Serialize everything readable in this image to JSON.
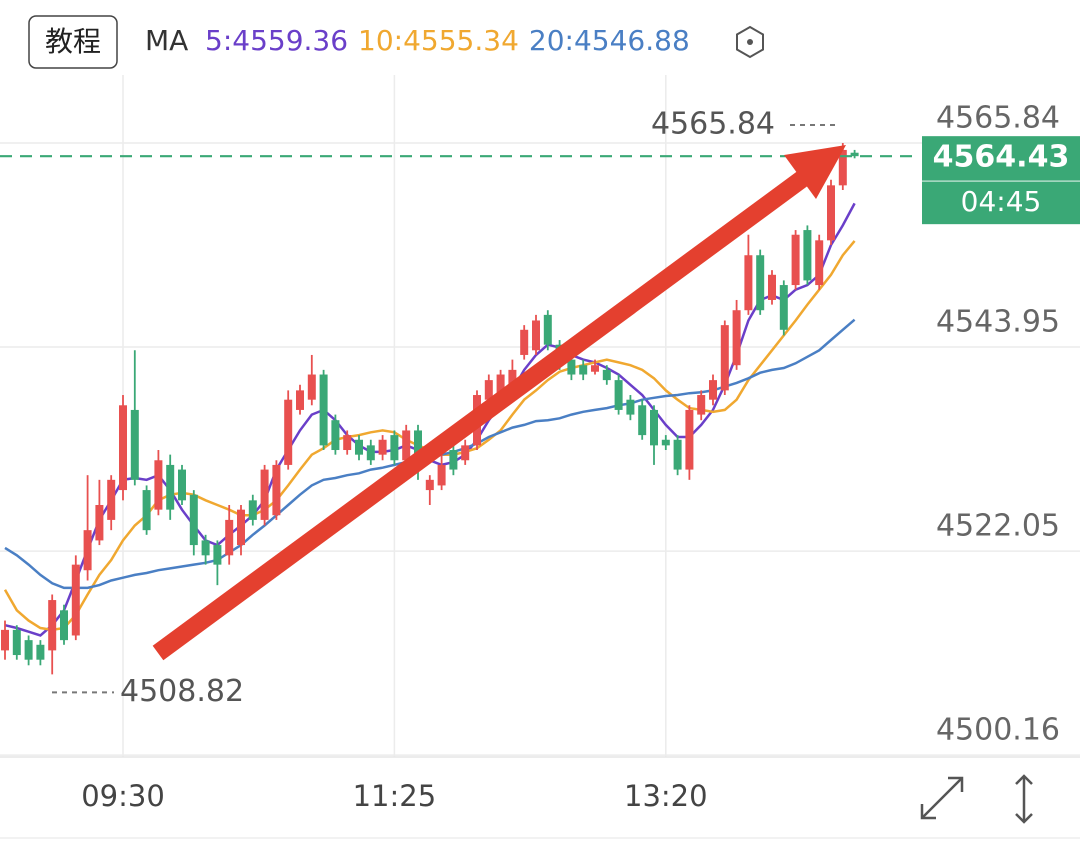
{
  "chart_data": {
    "type": "candlestick",
    "button": "教程",
    "legend_title": "MA",
    "up_color": "#e8504f",
    "down_color": "#3aa876",
    "ylim": [
      4499.96,
      4571.53
    ],
    "yticks": [
      4565.84,
      4543.95,
      4522.05,
      4500.16
    ],
    "grid": true,
    "categories": [
      null,
      null,
      null,
      null,
      null,
      null,
      null,
      null,
      null,
      null,
      "09:30",
      null,
      null,
      null,
      null,
      null,
      null,
      null,
      null,
      null,
      null,
      null,
      null,
      null,
      null,
      null,
      null,
      null,
      null,
      null,
      null,
      null,
      null,
      "11:25",
      null,
      null,
      null,
      null,
      null,
      null,
      null,
      null,
      null,
      null,
      null,
      null,
      null,
      null,
      null,
      null,
      null,
      null,
      null,
      null,
      null,
      null,
      "13:20",
      null,
      null,
      null,
      null,
      null,
      null,
      null,
      null,
      null,
      null,
      null,
      null,
      null,
      null,
      null,
      null
    ],
    "candles": [
      [
        4511.4,
        4514.6,
        4510.4,
        4513.6
      ],
      [
        4513.6,
        4514.1,
        4510.4,
        4510.9
      ],
      [
        4512.5,
        4513.0,
        4509.8,
        4510.4
      ],
      [
        4512.0,
        4512.5,
        4509.8,
        4510.4
      ],
      [
        4511.4,
        4517.4,
        4508.82,
        4516.8
      ],
      [
        4515.7,
        4516.3,
        4512.0,
        4512.5
      ],
      [
        4513.0,
        4521.6,
        4512.5,
        4520.6
      ],
      [
        4520.0,
        4530.2,
        4518.9,
        4524.3
      ],
      [
        4523.2,
        4529.7,
        4522.7,
        4527.0
      ],
      [
        4525.4,
        4530.2,
        4524.3,
        4529.7
      ],
      [
        4528.6,
        4538.8,
        4527.5,
        4537.7
      ],
      [
        4537.2,
        4543.6,
        4529.1,
        4529.7
      ],
      [
        4528.6,
        4529.1,
        4523.8,
        4524.3
      ],
      [
        4526.5,
        4532.9,
        4525.9,
        4531.8
      ],
      [
        4531.3,
        4532.4,
        4525.4,
        4526.5
      ],
      [
        4530.8,
        4531.3,
        4527.0,
        4527.5
      ],
      [
        4528.1,
        4528.6,
        4521.6,
        4522.7
      ],
      [
        4523.2,
        4523.8,
        4520.6,
        4521.6
      ],
      [
        4522.7,
        4523.2,
        4518.4,
        4520.6
      ],
      [
        4521.6,
        4527.0,
        4520.6,
        4525.4
      ],
      [
        4522.7,
        4527.0,
        4521.6,
        4526.5
      ],
      [
        4527.5,
        4528.1,
        4524.8,
        4525.4
      ],
      [
        4525.4,
        4531.3,
        4524.8,
        4530.8
      ],
      [
        4525.9,
        4531.8,
        4525.4,
        4531.3
      ],
      [
        4531.3,
        4539.3,
        4530.8,
        4538.3
      ],
      [
        4537.2,
        4539.9,
        4536.7,
        4539.3
      ],
      [
        4538.3,
        4543.1,
        4537.7,
        4541.0
      ],
      [
        4541.0,
        4541.5,
        4532.9,
        4533.4
      ],
      [
        4536.1,
        4536.7,
        4532.4,
        4532.9
      ],
      [
        4532.9,
        4535.0,
        4532.4,
        4534.5
      ],
      [
        4534.0,
        4534.5,
        4531.8,
        4532.4
      ],
      [
        4533.4,
        4534.0,
        4531.3,
        4531.8
      ],
      [
        4532.4,
        4534.5,
        4531.8,
        4534.0
      ],
      [
        4534.5,
        4535.0,
        4531.3,
        4531.8
      ],
      [
        4531.8,
        4535.6,
        4531.3,
        4535.0
      ],
      [
        4535.0,
        4535.6,
        4529.7,
        4530.8
      ],
      [
        4528.6,
        4530.2,
        4527.0,
        4529.7
      ],
      [
        4529.1,
        4532.4,
        4528.6,
        4531.3
      ],
      [
        4532.9,
        4533.4,
        4530.2,
        4530.8
      ],
      [
        4531.8,
        4534.0,
        4531.3,
        4533.4
      ],
      [
        4533.4,
        4539.3,
        4532.9,
        4538.8
      ],
      [
        4538.3,
        4541.0,
        4537.7,
        4540.4
      ],
      [
        4538.3,
        4541.5,
        4537.7,
        4541.0
      ],
      [
        4539.3,
        4542.6,
        4538.8,
        4541.5
      ],
      [
        4543.1,
        4546.3,
        4542.6,
        4545.8
      ],
      [
        4543.6,
        4547.4,
        4543.1,
        4546.8
      ],
      [
        4547.4,
        4547.9,
        4543.6,
        4544.2
      ],
      [
        4544.2,
        4544.7,
        4541.5,
        4542.0
      ],
      [
        4542.6,
        4543.1,
        4540.4,
        4541.0
      ],
      [
        4542.0,
        4542.6,
        4540.4,
        4541.0
      ],
      [
        4541.3,
        4542.6,
        4541.0,
        4542.0
      ],
      [
        4541.5,
        4542.0,
        4539.9,
        4540.4
      ],
      [
        4540.4,
        4541.0,
        4536.7,
        4537.2
      ],
      [
        4538.3,
        4538.8,
        4536.1,
        4536.7
      ],
      [
        4537.7,
        4538.3,
        4534.0,
        4534.5
      ],
      [
        4537.2,
        4537.7,
        4531.3,
        4533.4
      ],
      [
        4534.0,
        4534.5,
        4532.9,
        4533.4
      ],
      [
        4534.0,
        4534.5,
        4530.2,
        4530.8
      ],
      [
        4530.8,
        4537.7,
        4529.7,
        4537.2
      ],
      [
        4536.7,
        4539.3,
        4536.1,
        4538.8
      ],
      [
        4538.3,
        4541.0,
        4537.7,
        4540.4
      ],
      [
        4539.3,
        4546.8,
        4538.8,
        4546.3
      ],
      [
        4542.0,
        4549.0,
        4541.5,
        4547.9
      ],
      [
        4547.9,
        4556.0,
        4547.4,
        4553.8
      ],
      [
        4553.8,
        4554.4,
        4547.4,
        4547.9
      ],
      [
        4549.0,
        4552.2,
        4548.5,
        4551.7
      ],
      [
        4550.6,
        4551.1,
        4545.2,
        4545.8
      ],
      [
        4550.6,
        4556.5,
        4550.1,
        4556.0
      ],
      [
        4556.5,
        4557.0,
        4550.6,
        4551.1
      ],
      [
        4550.6,
        4556.0,
        4550.1,
        4555.4
      ],
      [
        4555.4,
        4561.9,
        4554.9,
        4561.3
      ],
      [
        4561.3,
        4565.84,
        4560.8,
        4565.1
      ],
      [
        4564.8,
        4565.1,
        4564.2,
        4564.43
      ]
    ],
    "series": [
      {
        "name": "5:4559.36",
        "color": "#6a3fc9",
        "values": [
          4514.1,
          4513.8,
          4513.4,
          4513.0,
          4514.1,
          4515.7,
          4518.9,
          4522.2,
          4525.4,
          4527.5,
          4529.7,
          4529.9,
          4529.7,
          4530.2,
          4528.6,
          4526.5,
          4524.8,
          4523.2,
          4522.7,
          4523.8,
          4524.8,
          4525.9,
          4527.5,
          4530.8,
          4532.9,
          4535.0,
          4536.7,
          4537.2,
          4536.1,
          4534.5,
          4533.4,
          4532.7,
          4532.7,
          4532.9,
          4533.4,
          4532.9,
          4531.8,
          4531.3,
          4531.6,
          4532.4,
          4534.0,
          4536.1,
          4537.7,
          4539.3,
          4541.5,
          4543.1,
          4544.2,
          4543.9,
          4543.1,
          4542.6,
          4542.3,
          4541.7,
          4541.0,
          4539.9,
          4538.8,
          4537.2,
          4535.6,
          4534.3,
          4534.3,
          4535.6,
          4537.2,
          4539.9,
          4543.1,
          4546.8,
          4549.0,
          4549.5,
          4549.0,
          4550.1,
          4550.6,
          4551.7,
          4554.9,
          4557.0,
          4559.36
        ]
      },
      {
        "name": "10:4555.34",
        "color": "#f0a830",
        "values": [
          4517.9,
          4515.7,
          4514.6,
          4513.8,
          4513.6,
          4513.8,
          4515.2,
          4517.4,
          4519.5,
          4521.1,
          4523.2,
          4524.8,
          4525.9,
          4527.5,
          4528.1,
          4528.3,
          4528.1,
          4527.5,
          4527.0,
          4526.5,
          4525.9,
          4525.9,
          4526.5,
          4527.5,
          4529.1,
          4530.8,
          4532.4,
          4533.1,
          4534.0,
          4534.3,
          4534.5,
          4534.8,
          4535.0,
          4534.8,
          4534.0,
          4533.4,
          4532.9,
          4532.4,
          4532.4,
          4532.7,
          4533.1,
          4534.0,
          4535.0,
          4536.7,
          4538.3,
          4539.3,
          4540.4,
          4541.3,
          4541.7,
          4542.0,
          4542.3,
          4542.6,
          4542.3,
          4542.0,
          4541.5,
          4540.6,
          4539.3,
          4538.3,
          4537.4,
          4537.2,
          4537.0,
          4537.2,
          4538.3,
          4540.4,
          4542.0,
          4543.6,
          4545.2,
          4546.8,
          4548.5,
          4550.1,
          4551.7,
          4553.8,
          4555.34
        ]
      },
      {
        "name": "20:4546.88",
        "color": "#4a7fc4",
        "values": [
          4522.4,
          4521.6,
          4520.6,
          4519.5,
          4518.6,
          4518.1,
          4518.1,
          4518.1,
          4518.4,
          4518.9,
          4519.2,
          4519.5,
          4519.7,
          4520.0,
          4520.2,
          4520.4,
          4520.6,
          4520.8,
          4521.1,
          4521.9,
          4522.7,
          4523.8,
          4524.8,
          4525.9,
          4527.0,
          4528.1,
          4529.1,
          4529.7,
          4529.9,
          4530.2,
          4530.4,
          4530.8,
          4531.0,
          4531.3,
          4531.6,
          4531.8,
          4532.0,
          4532.4,
          4532.7,
          4533.1,
          4533.6,
          4534.3,
          4534.8,
          4535.3,
          4535.6,
          4536.0,
          4536.1,
          4536.3,
          4536.7,
          4537.0,
          4537.2,
          4537.4,
          4537.7,
          4537.9,
          4538.3,
          4538.5,
          4538.7,
          4538.8,
          4539.0,
          4539.1,
          4539.3,
          4539.7,
          4540.1,
          4540.6,
          4541.2,
          4541.5,
          4541.7,
          4542.2,
          4542.9,
          4543.6,
          4544.7,
          4545.8,
          4546.88
        ]
      }
    ],
    "high_mark": 4565.84,
    "low_mark": 4508.82,
    "last_price": 4564.43,
    "last_price_color": "#3aa876",
    "countdown": "04:45"
  }
}
